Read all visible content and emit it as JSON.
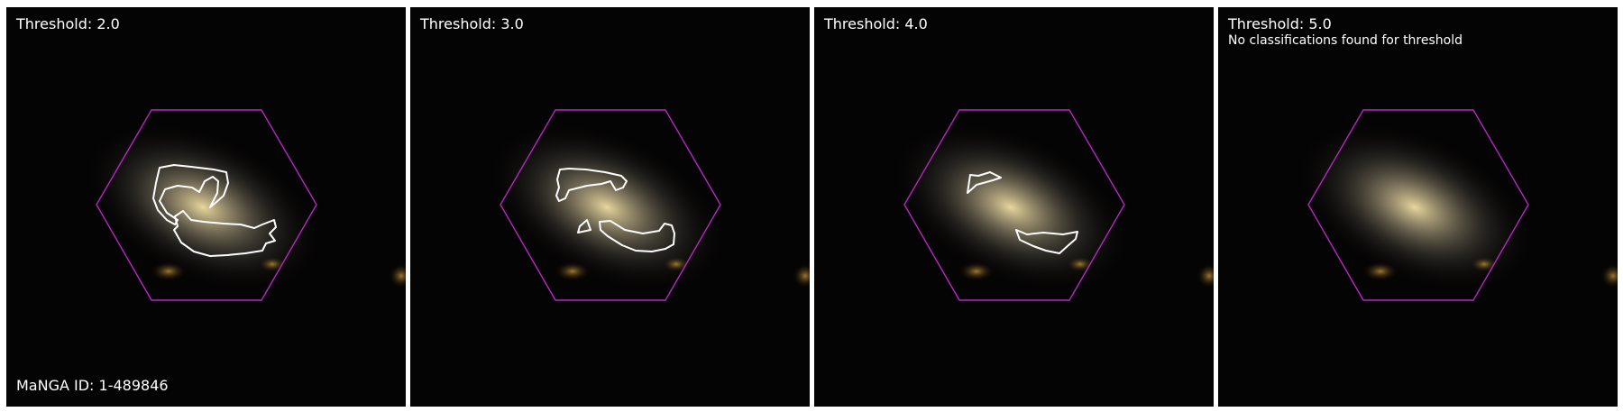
{
  "colors": {
    "background": "#050404",
    "hexagon": "#b626c4",
    "contour": "#ffffff",
    "galaxy_core": "#f3e1a4",
    "separator": "#ffffff"
  },
  "panels": [
    {
      "title": "Threshold: 2.0",
      "note": "",
      "contours": 2
    },
    {
      "title": "Threshold: 3.0",
      "note": "",
      "contours": 3
    },
    {
      "title": "Threshold: 4.0",
      "note": "",
      "contours": 2
    },
    {
      "title": "Threshold: 5.0",
      "note": "No classifications found for threshold",
      "contours": 0
    }
  ],
  "footer": {
    "manga_id": "MaNGA ID: 1-489846"
  }
}
